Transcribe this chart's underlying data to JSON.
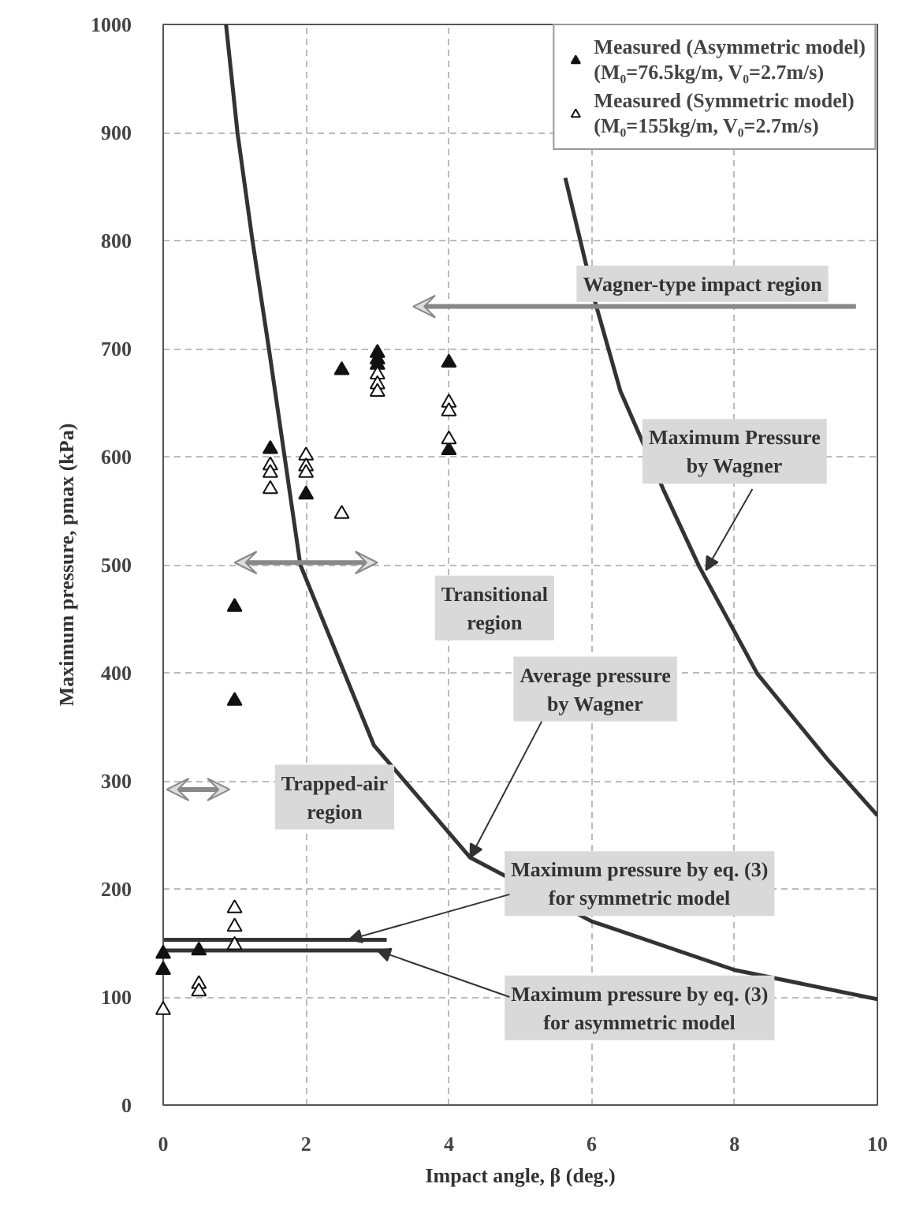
{
  "chart_data": {
    "type": "scatter",
    "xlabel": "Impact angle, β (deg.)",
    "ylabel": "Maximum pressure, pmax (kPa)",
    "xlim": [
      0,
      10
    ],
    "xticks": [
      0,
      2,
      4,
      6,
      8,
      10
    ],
    "ylim": [
      0,
      1000
    ],
    "yticks": [
      0,
      100,
      200,
      300,
      400,
      500,
      600,
      700,
      800,
      900,
      1000
    ],
    "grid": true,
    "legend": "top right",
    "series": [
      {
        "name": "Measured (Asymmetric model)\n(M₀=76.5kg/m, V₀=2.7m/s)",
        "marker": "triangle",
        "color": "#111111",
        "x": [
          0,
          0,
          0.5,
          1,
          1,
          1.5,
          2,
          2.5,
          3,
          3,
          3,
          4,
          4
        ],
        "values": [
          140,
          125,
          143,
          461,
          374,
          607,
          565,
          680,
          696,
          690,
          685,
          687,
          606
        ]
      },
      {
        "name": "Measured (Symmetric model)\n(M₀=155kg/m, V₀=2.7m/s)",
        "marker": "triangle",
        "color": "#ffffff",
        "x": [
          0,
          0.5,
          0.5,
          1,
          1,
          1,
          1.5,
          1.5,
          1.5,
          2,
          2,
          2,
          2.5,
          3,
          3,
          3,
          4,
          4,
          4
        ],
        "values": [
          88,
          112,
          105,
          182,
          165,
          148,
          592,
          585,
          570,
          601,
          591,
          585,
          547,
          676,
          667,
          660,
          650,
          642,
          616
        ]
      },
      {
        "type": "line",
        "color": "#333333",
        "x": [
          5.63,
          6.04,
          6.4,
          7.0,
          7.5,
          8.32,
          9.3,
          10
        ],
        "values": [
          858,
          745,
          661,
          570,
          499,
          399,
          320,
          268
        ]
      },
      {
        "type": "line",
        "color": "#333333",
        "x": [
          0.88,
          1.04,
          1.25,
          1.48,
          1.92,
          2.95,
          4.3,
          6,
          8,
          10
        ],
        "values": [
          1000,
          900,
          800,
          700,
          500,
          333,
          229,
          170,
          125,
          98
        ]
      },
      {
        "type": "line",
        "color": "#333333",
        "x": [
          0,
          3.13
        ],
        "values": [
          153,
          153
        ]
      },
      {
        "type": "line",
        "color": "#333333",
        "x": [
          0,
          3.13
        ],
        "values": [
          143,
          143
        ]
      }
    ],
    "annotations": [
      "Wagner-type impact region",
      "Transitional\nregion",
      "Trapped-air\nregion",
      {
        "text": "Maximum Pressure\nby Wagner",
        "x": 7.6,
        "y": 495
      },
      {
        "text": "Average pressure\nby Wagner",
        "x": 4.3,
        "y": 229
      },
      {
        "text": "Maximum pressure by eq. (3)\nfor symmetric model",
        "x": 2.6,
        "y": 153
      },
      {
        "text": "Maximum pressure by eq. (3)\nfor asymmetric model",
        "x": 3.0,
        "y": 143
      }
    ]
  }
}
